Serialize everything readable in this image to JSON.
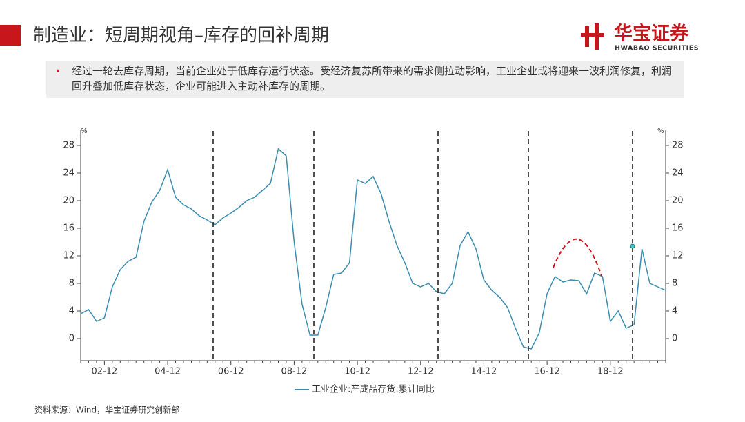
{
  "header": {
    "title": "制造业：短周期视角–库存的回补周期",
    "logo": "华宝证券",
    "logo_en": "HWABAO SECURITIES"
  },
  "bullet": "经过一轮去库存周期，当前企业处于低库存运行状态。受经济复苏所带来的需求侧拉动影响，工业企业或将迎来一波利润修复，利润回升叠加低库存状态，企业可能进入主动补库存的周期。",
  "source": "资料来源：Wind，华宝证券研究创新部",
  "chart_data": {
    "type": "line",
    "categories": [
      null,
      null,
      null,
      "02-12",
      null,
      null,
      null,
      null,
      null,
      null,
      null,
      "04-12",
      null,
      null,
      null,
      null,
      null,
      null,
      null,
      "06-12",
      null,
      null,
      null,
      null,
      null,
      null,
      null,
      "08-12",
      null,
      null,
      null,
      null,
      null,
      null,
      null,
      "10-12",
      null,
      null,
      null,
      null,
      null,
      null,
      null,
      "12-12",
      null,
      null,
      null,
      null,
      null,
      null,
      null,
      "14-12",
      null,
      null,
      null,
      null,
      null,
      null,
      null,
      "16-12",
      null,
      null,
      null,
      null,
      null,
      null,
      null,
      "18-12",
      null,
      null,
      null,
      null,
      null,
      null,
      null
    ],
    "series": [
      {
        "name": "工业企业:产成品存货:累计同比",
        "color": "#3a8db0",
        "values": [
          3.6,
          4.2,
          2.5,
          3,
          7.5,
          10,
          11.2,
          11.8,
          17,
          19.8,
          21.5,
          24.5,
          20.5,
          19.4,
          18.8,
          17.8,
          17.2,
          16.5,
          17.5,
          18.2,
          19,
          20,
          20.5,
          21.5,
          22.5,
          27.5,
          26.5,
          14,
          5,
          0.5,
          0.5,
          4.5,
          9.3,
          9.5,
          11,
          23,
          22.5,
          23.5,
          21,
          17,
          13.5,
          11,
          8,
          7.5,
          8,
          6.8,
          6.5,
          8,
          13.5,
          15.5,
          13,
          8.5,
          7,
          6,
          4.5,
          1.5,
          -1.2,
          -1.5,
          0.8,
          6.5,
          9,
          8.2,
          8.5,
          8.4,
          6.5,
          9.5,
          9,
          2.5,
          4,
          1.5,
          2,
          13,
          8,
          7.5,
          7
        ]
      }
    ],
    "ylim": [
      -3.2,
      30.3
    ],
    "yticks": [
      0,
      4,
      8,
      12,
      16,
      20,
      24,
      28
    ],
    "y2lim": [
      -3.2,
      30.3
    ],
    "y2ticks": [
      0,
      4,
      8,
      12,
      16,
      20,
      24,
      28
    ],
    "y_unit": "%",
    "y2_unit": "%",
    "legend": "bottom"
  }
}
